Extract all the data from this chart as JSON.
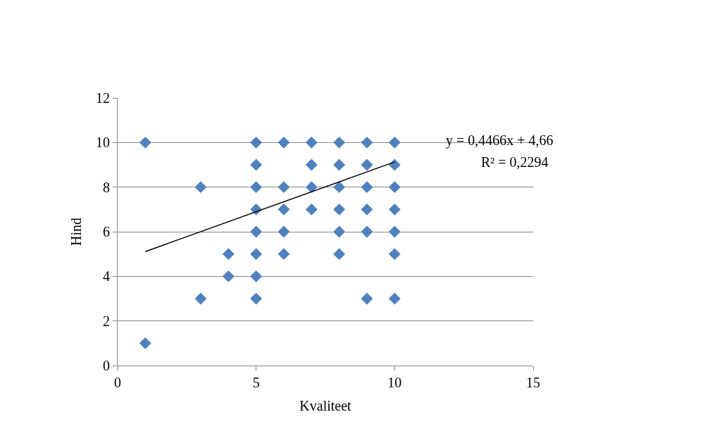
{
  "chart_data": {
    "type": "scatter",
    "xlabel": "Kvaliteet",
    "ylabel": "Hind",
    "xlim": [
      0,
      15
    ],
    "xticks": [
      0,
      5,
      10,
      15
    ],
    "ylim": [
      0,
      12
    ],
    "yticks": [
      0,
      2,
      4,
      6,
      8,
      10,
      12
    ],
    "grid": "y",
    "marker": "diamond",
    "series": [
      {
        "color": "#4f81bd",
        "x": [
          1,
          1,
          3,
          3,
          4,
          4,
          5,
          5,
          5,
          5,
          5,
          5,
          5,
          5,
          6,
          6,
          6,
          6,
          6,
          7,
          7,
          7,
          7,
          8,
          8,
          8,
          8,
          8,
          8,
          9,
          9,
          9,
          9,
          9,
          9,
          10,
          10,
          10,
          10,
          10,
          10,
          10
        ],
        "values": [
          10,
          1,
          8,
          3,
          5,
          4,
          10,
          9,
          8,
          7,
          6,
          5,
          4,
          3,
          10,
          8,
          7,
          6,
          5,
          10,
          9,
          8,
          7,
          10,
          9,
          8,
          7,
          6,
          5,
          10,
          9,
          8,
          7,
          6,
          3,
          10,
          9,
          8,
          7,
          6,
          5,
          3
        ]
      },
      {
        "type": "line",
        "color": "#000000",
        "marker": "none",
        "x": [
          1,
          10
        ],
        "values": [
          5.11,
          9.13
        ]
      }
    ],
    "annotations": [
      "y = 0,4466x + 4,66",
      "R² = 0,2294"
    ]
  }
}
